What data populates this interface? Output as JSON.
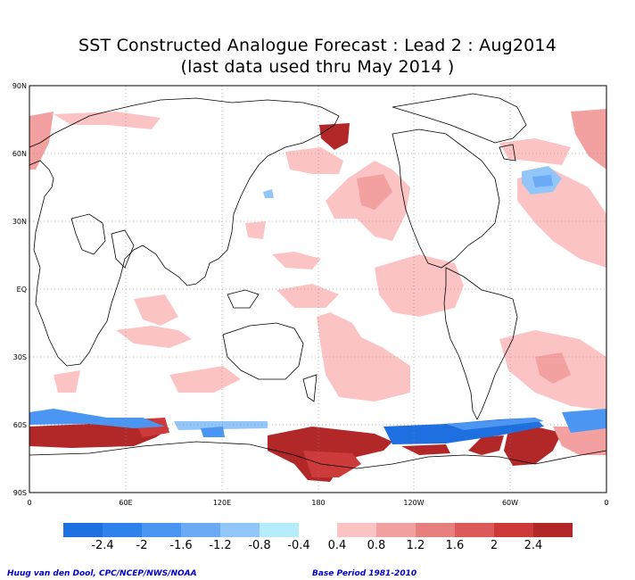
{
  "title": {
    "line1": "SST Constructed Analogue Forecast : Lead 2 : Aug2014",
    "line2": "(last data used thru May 2014 )"
  },
  "axes": {
    "lat_labels": [
      "90N",
      "60N",
      "30N",
      "EQ",
      "30S",
      "60S",
      "90S"
    ],
    "lon_labels": [
      "0",
      "60E",
      "120E",
      "180",
      "120W",
      "60W",
      "0"
    ]
  },
  "legend": {
    "labels": [
      "-2.4",
      "-2",
      "-1.6",
      "-1.2",
      "-0.8",
      "-0.4",
      "0.4",
      "0.8",
      "1.2",
      "1.6",
      "2",
      "2.4"
    ],
    "negative_colors": [
      "#1e6fe0",
      "#2e82ec",
      "#4b96f2",
      "#6caaf5",
      "#93c6f8",
      "#b5ecfb"
    ],
    "positive_colors": [
      "#fbc3c3",
      "#f2a0a0",
      "#e87f7f",
      "#dc5a5a",
      "#cd3a3a",
      "#b22727"
    ]
  },
  "footer": {
    "credit": "Huug van den Dool, CPC/NCEP/NWS/NOAA",
    "base_period": "Base Period 1981-2010"
  }
}
